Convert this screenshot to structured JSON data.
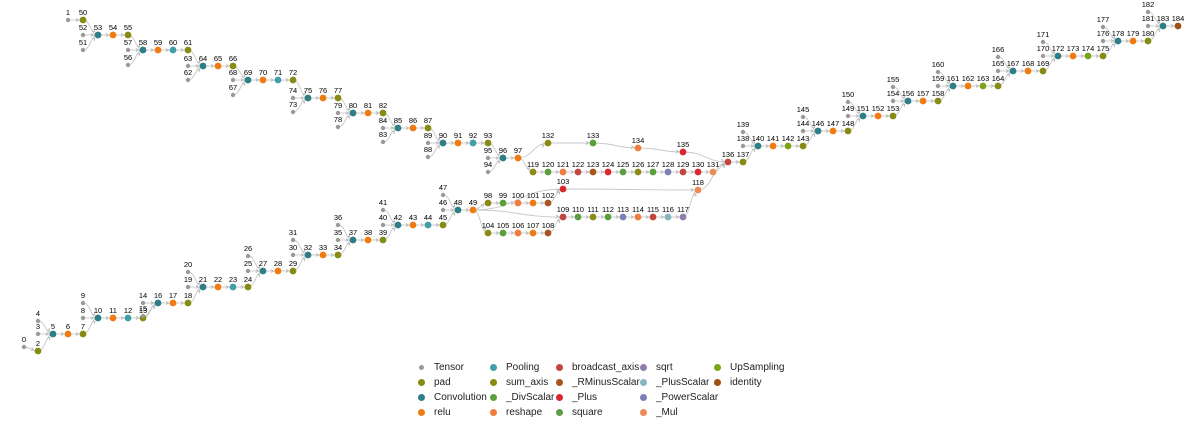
{
  "colors": {
    "Tensor": "#9a9a9a",
    "pad": "#858b13",
    "Convolution": "#2e7e86",
    "relu": "#f07b12",
    "Pooling": "#3e9fa6",
    "sum_axis": "#8a8a14",
    "_DivScalar": "#5aa03a",
    "reshape": "#ee7d3e",
    "broadcast_axis": "#c0463e",
    "_RMinusScalar": "#a7541e",
    "_Plus": "#d8282d",
    "square": "#5f9c46",
    "sqrt": "#8f7dad",
    "_PlusScalar": "#83b6bd",
    "_PowerScalar": "#7b7fb8",
    "_Mul": "#ec8a59",
    "UpSampling": "#7da216",
    "identity": "#a04f17",
    "edge": "#c8c8c8"
  },
  "legend": [
    "Tensor",
    "pad",
    "Convolution",
    "relu",
    "Pooling",
    "sum_axis",
    "_DivScalar",
    "reshape",
    "broadcast_axis",
    "_RMinusScalar",
    "_Plus",
    "square",
    "sqrt",
    "_PlusScalar",
    "_PowerScalar",
    "_Mul",
    "UpSampling",
    "identity"
  ],
  "nodes": [
    {
      "id": "0",
      "t": "Tensor"
    },
    {
      "id": "1",
      "t": "Tensor"
    },
    {
      "id": "2",
      "t": "pad"
    },
    {
      "id": "3",
      "t": "Tensor"
    },
    {
      "id": "4",
      "t": "Tensor"
    },
    {
      "id": "5",
      "t": "Convolution"
    },
    {
      "id": "6",
      "t": "relu"
    },
    {
      "id": "7",
      "t": "pad"
    },
    {
      "id": "8",
      "t": "Tensor"
    },
    {
      "id": "9",
      "t": "Tensor"
    },
    {
      "id": "10",
      "t": "Convolution"
    },
    {
      "id": "11",
      "t": "relu"
    },
    {
      "id": "12",
      "t": "Pooling"
    },
    {
      "id": "13",
      "t": "pad"
    },
    {
      "id": "14",
      "t": "Tensor"
    },
    {
      "id": "15",
      "t": "Tensor"
    },
    {
      "id": "16",
      "t": "Convolution"
    },
    {
      "id": "17",
      "t": "relu"
    },
    {
      "id": "18",
      "t": "pad"
    },
    {
      "id": "19",
      "t": "Tensor"
    },
    {
      "id": "20",
      "t": "Tensor"
    },
    {
      "id": "21",
      "t": "Convolution"
    },
    {
      "id": "22",
      "t": "relu"
    },
    {
      "id": "23",
      "t": "Pooling"
    },
    {
      "id": "24",
      "t": "pad"
    },
    {
      "id": "25",
      "t": "Tensor"
    },
    {
      "id": "26",
      "t": "Tensor"
    },
    {
      "id": "27",
      "t": "Convolution"
    },
    {
      "id": "28",
      "t": "relu"
    },
    {
      "id": "29",
      "t": "pad"
    },
    {
      "id": "30",
      "t": "Tensor"
    },
    {
      "id": "31",
      "t": "Tensor"
    },
    {
      "id": "32",
      "t": "Convolution"
    },
    {
      "id": "33",
      "t": "relu"
    },
    {
      "id": "34",
      "t": "pad"
    },
    {
      "id": "35",
      "t": "Tensor"
    },
    {
      "id": "36",
      "t": "Tensor"
    },
    {
      "id": "37",
      "t": "Convolution"
    },
    {
      "id": "38",
      "t": "relu"
    },
    {
      "id": "39",
      "t": "pad"
    },
    {
      "id": "40",
      "t": "Tensor"
    },
    {
      "id": "41",
      "t": "Tensor"
    },
    {
      "id": "42",
      "t": "Convolution"
    },
    {
      "id": "43",
      "t": "relu"
    },
    {
      "id": "44",
      "t": "Pooling"
    },
    {
      "id": "45",
      "t": "pad"
    },
    {
      "id": "46",
      "t": "Tensor"
    },
    {
      "id": "47",
      "t": "Tensor"
    },
    {
      "id": "48",
      "t": "Convolution"
    },
    {
      "id": "49",
      "t": "relu"
    },
    {
      "id": "50",
      "t": "pad"
    },
    {
      "id": "51",
      "t": "Tensor"
    },
    {
      "id": "52",
      "t": "Tensor"
    },
    {
      "id": "53",
      "t": "Convolution"
    },
    {
      "id": "54",
      "t": "relu"
    },
    {
      "id": "55",
      "t": "pad"
    },
    {
      "id": "56",
      "t": "Tensor"
    },
    {
      "id": "57",
      "t": "Tensor"
    },
    {
      "id": "58",
      "t": "Convolution"
    },
    {
      "id": "59",
      "t": "relu"
    },
    {
      "id": "60",
      "t": "Pooling"
    },
    {
      "id": "61",
      "t": "pad"
    },
    {
      "id": "62",
      "t": "Tensor"
    },
    {
      "id": "63",
      "t": "Tensor"
    },
    {
      "id": "64",
      "t": "Convolution"
    },
    {
      "id": "65",
      "t": "relu"
    },
    {
      "id": "66",
      "t": "pad"
    },
    {
      "id": "67",
      "t": "Tensor"
    },
    {
      "id": "68",
      "t": "Tensor"
    },
    {
      "id": "69",
      "t": "Convolution"
    },
    {
      "id": "70",
      "t": "relu"
    },
    {
      "id": "71",
      "t": "Pooling"
    },
    {
      "id": "72",
      "t": "pad"
    },
    {
      "id": "73",
      "t": "Tensor"
    },
    {
      "id": "74",
      "t": "Tensor"
    },
    {
      "id": "75",
      "t": "Convolution"
    },
    {
      "id": "76",
      "t": "relu"
    },
    {
      "id": "77",
      "t": "pad"
    },
    {
      "id": "78",
      "t": "Tensor"
    },
    {
      "id": "79",
      "t": "Tensor"
    },
    {
      "id": "80",
      "t": "Convolution"
    },
    {
      "id": "81",
      "t": "relu"
    },
    {
      "id": "82",
      "t": "pad"
    },
    {
      "id": "83",
      "t": "Tensor"
    },
    {
      "id": "84",
      "t": "Tensor"
    },
    {
      "id": "85",
      "t": "Convolution"
    },
    {
      "id": "86",
      "t": "relu"
    },
    {
      "id": "87",
      "t": "pad"
    },
    {
      "id": "88",
      "t": "Tensor"
    },
    {
      "id": "89",
      "t": "Tensor"
    },
    {
      "id": "90",
      "t": "Convolution"
    },
    {
      "id": "91",
      "t": "relu"
    },
    {
      "id": "92",
      "t": "Pooling"
    },
    {
      "id": "93",
      "t": "pad"
    },
    {
      "id": "94",
      "t": "Tensor"
    },
    {
      "id": "95",
      "t": "Tensor"
    },
    {
      "id": "96",
      "t": "Convolution"
    },
    {
      "id": "97",
      "t": "relu"
    },
    {
      "id": "98",
      "t": "sum_axis"
    },
    {
      "id": "99",
      "t": "_DivScalar"
    },
    {
      "id": "100",
      "t": "reshape"
    },
    {
      "id": "101",
      "t": "relu"
    },
    {
      "id": "102",
      "t": "_RMinusScalar"
    },
    {
      "id": "103",
      "t": "_Plus"
    },
    {
      "id": "104",
      "t": "sum_axis"
    },
    {
      "id": "105",
      "t": "_DivScalar"
    },
    {
      "id": "106",
      "t": "reshape"
    },
    {
      "id": "107",
      "t": "relu"
    },
    {
      "id": "108",
      "t": "_RMinusScalar"
    },
    {
      "id": "109",
      "t": "broadcast_axis"
    },
    {
      "id": "110",
      "t": "square"
    },
    {
      "id": "111",
      "t": "sum_axis"
    },
    {
      "id": "112",
      "t": "_DivScalar"
    },
    {
      "id": "113",
      "t": "_PowerScalar"
    },
    {
      "id": "114",
      "t": "reshape"
    },
    {
      "id": "115",
      "t": "broadcast_axis"
    },
    {
      "id": "116",
      "t": "_PlusScalar"
    },
    {
      "id": "117",
      "t": "sqrt"
    },
    {
      "id": "118",
      "t": "_Mul"
    },
    {
      "id": "119",
      "t": "sum_axis"
    },
    {
      "id": "120",
      "t": "_DivScalar"
    },
    {
      "id": "121",
      "t": "reshape"
    },
    {
      "id": "122",
      "t": "broadcast_axis"
    },
    {
      "id": "123",
      "t": "_RMinusScalar"
    },
    {
      "id": "124",
      "t": "_Plus"
    },
    {
      "id": "125",
      "t": "square"
    },
    {
      "id": "126",
      "t": "sum_axis"
    },
    {
      "id": "127",
      "t": "_DivScalar"
    },
    {
      "id": "128",
      "t": "_PowerScalar"
    },
    {
      "id": "129",
      "t": "broadcast_axis"
    },
    {
      "id": "130",
      "t": "_Plus"
    },
    {
      "id": "131",
      "t": "_Mul"
    },
    {
      "id": "132",
      "t": "sum_axis"
    },
    {
      "id": "133",
      "t": "_DivScalar"
    },
    {
      "id": "134",
      "t": "reshape"
    },
    {
      "id": "135",
      "t": "_Plus"
    },
    {
      "id": "136",
      "t": "broadcast_axis"
    },
    {
      "id": "137",
      "t": "pad"
    },
    {
      "id": "138",
      "t": "Tensor"
    },
    {
      "id": "139",
      "t": "Tensor"
    },
    {
      "id": "140",
      "t": "Convolution"
    },
    {
      "id": "141",
      "t": "relu"
    },
    {
      "id": "142",
      "t": "UpSampling"
    },
    {
      "id": "143",
      "t": "pad"
    },
    {
      "id": "144",
      "t": "Tensor"
    },
    {
      "id": "145",
      "t": "Tensor"
    },
    {
      "id": "146",
      "t": "Convolution"
    },
    {
      "id": "147",
      "t": "relu"
    },
    {
      "id": "148",
      "t": "pad"
    },
    {
      "id": "149",
      "t": "Tensor"
    },
    {
      "id": "150",
      "t": "Tensor"
    },
    {
      "id": "151",
      "t": "Convolution"
    },
    {
      "id": "152",
      "t": "relu"
    },
    {
      "id": "153",
      "t": "pad"
    },
    {
      "id": "154",
      "t": "Tensor"
    },
    {
      "id": "155",
      "t": "Tensor"
    },
    {
      "id": "156",
      "t": "Convolution"
    },
    {
      "id": "157",
      "t": "relu"
    },
    {
      "id": "158",
      "t": "pad"
    },
    {
      "id": "159",
      "t": "Tensor"
    },
    {
      "id": "160",
      "t": "Tensor"
    },
    {
      "id": "161",
      "t": "Convolution"
    },
    {
      "id": "162",
      "t": "relu"
    },
    {
      "id": "163",
      "t": "UpSampling"
    },
    {
      "id": "164",
      "t": "pad"
    },
    {
      "id": "165",
      "t": "Tensor"
    },
    {
      "id": "166",
      "t": "Tensor"
    },
    {
      "id": "167",
      "t": "Convolution"
    },
    {
      "id": "168",
      "t": "relu"
    },
    {
      "id": "169",
      "t": "pad"
    },
    {
      "id": "170",
      "t": "Tensor"
    },
    {
      "id": "171",
      "t": "Tensor"
    },
    {
      "id": "172",
      "t": "Convolution"
    },
    {
      "id": "173",
      "t": "relu"
    },
    {
      "id": "174",
      "t": "UpSampling"
    },
    {
      "id": "175",
      "t": "pad"
    },
    {
      "id": "176",
      "t": "Tensor"
    },
    {
      "id": "177",
      "t": "Tensor"
    },
    {
      "id": "178",
      "t": "Convolution"
    },
    {
      "id": "179",
      "t": "relu"
    },
    {
      "id": "180",
      "t": "pad"
    },
    {
      "id": "181",
      "t": "Tensor"
    },
    {
      "id": "182",
      "t": "Tensor"
    },
    {
      "id": "183",
      "t": "Convolution"
    },
    {
      "id": "184",
      "t": "identity"
    }
  ]
}
